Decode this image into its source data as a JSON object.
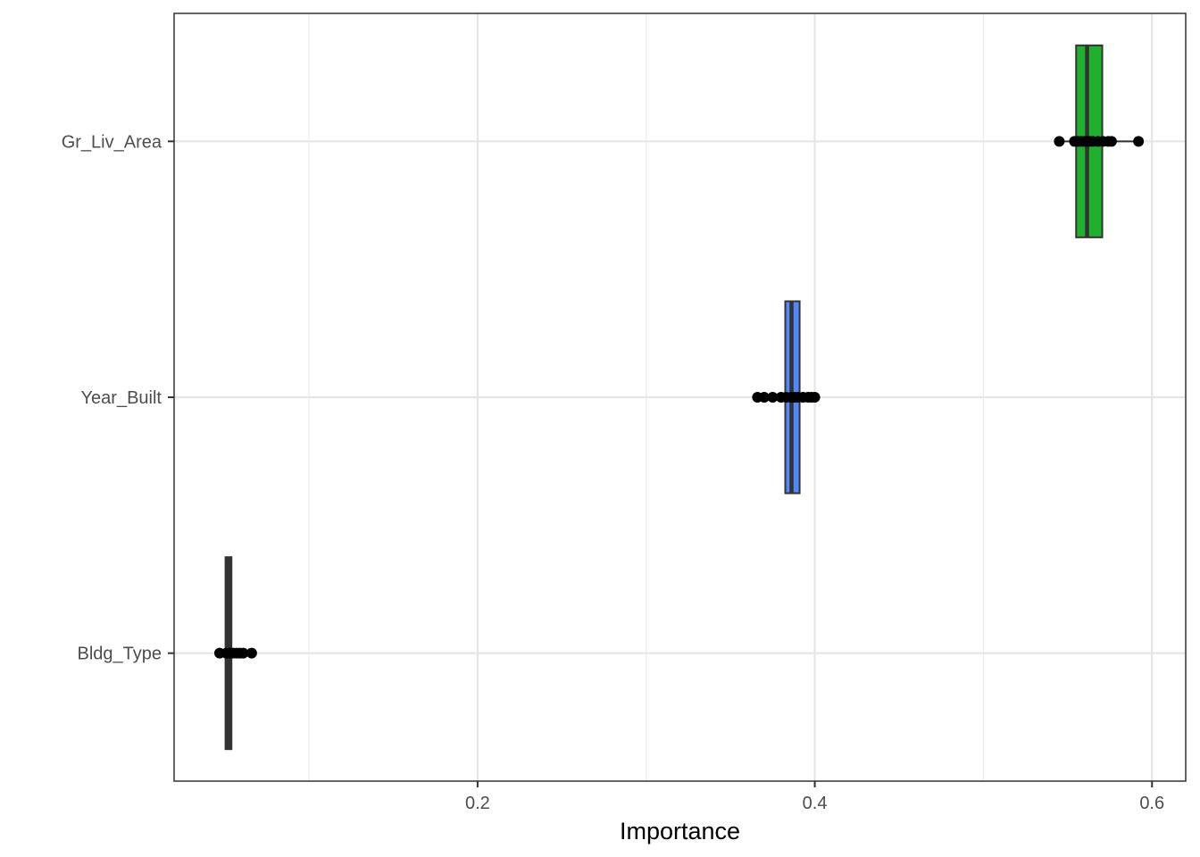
{
  "chart_data": {
    "type": "boxplot",
    "title": "",
    "xlabel": "Importance",
    "ylabel": "",
    "xlim": [
      0.02,
      0.62
    ],
    "x_ticks": [
      0.2,
      0.4,
      0.6
    ],
    "x_tick_labels": [
      "0.2",
      "0.4",
      "0.6"
    ],
    "x_minor_ticks": [
      0.1,
      0.3,
      0.5
    ],
    "grid": true,
    "legend": "none",
    "categories": [
      "Gr_Liv_Area",
      "Year_Built",
      "Bldg_Type"
    ],
    "series": [
      {
        "category": "Gr_Liv_Area",
        "color": "#1fb02f",
        "box": {
          "min": 0.545,
          "q1": 0.555,
          "median": 0.5615,
          "q3": 0.5705,
          "max": 0.592
        },
        "points": [
          0.545,
          0.554,
          0.556,
          0.558,
          0.56,
          0.5615,
          0.563,
          0.565,
          0.568,
          0.571,
          0.574,
          0.576,
          0.592
        ]
      },
      {
        "category": "Year_Built",
        "color": "#5189fc",
        "box": {
          "min": 0.366,
          "q1": 0.3825,
          "median": 0.3862,
          "q3": 0.391,
          "max": 0.4
        },
        "points": [
          0.366,
          0.37,
          0.375,
          0.38,
          0.383,
          0.386,
          0.388,
          0.39,
          0.393,
          0.396,
          0.398,
          0.4
        ]
      },
      {
        "category": "Bldg_Type",
        "color": "#2f2222",
        "box": {
          "min": 0.047,
          "q1": 0.0505,
          "median": 0.0522,
          "q3": 0.054,
          "max": 0.066
        },
        "points": [
          0.047,
          0.051,
          0.053,
          0.055,
          0.057,
          0.059,
          0.061,
          0.066
        ]
      }
    ]
  }
}
